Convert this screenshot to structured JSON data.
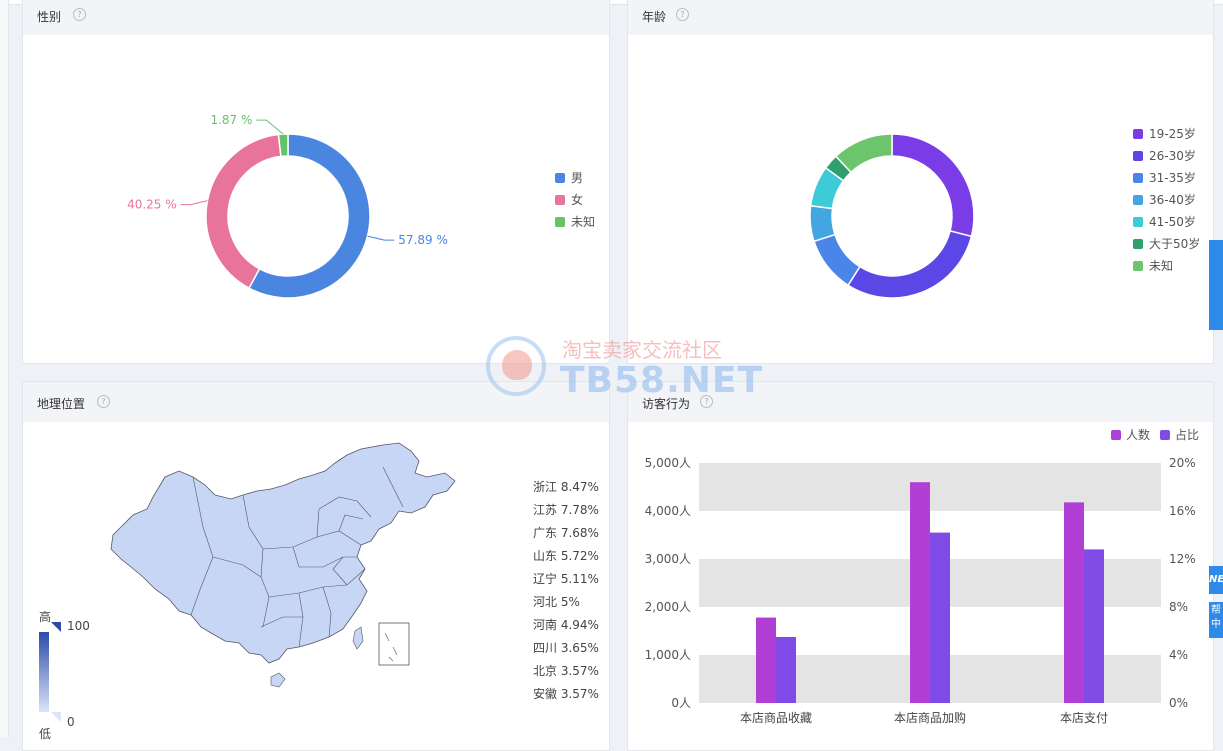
{
  "gender": {
    "title": "性别",
    "legend": [
      {
        "label": "男",
        "color": "#4a86e0"
      },
      {
        "label": "女",
        "color": "#e8749c"
      },
      {
        "label": "未知",
        "color": "#66c266"
      }
    ],
    "callouts": [
      "57.89 %",
      "40.25 %",
      "1.87 %"
    ]
  },
  "age": {
    "title": "年龄",
    "legend": [
      {
        "label": "19-25岁",
        "color": "#7a3ce6"
      },
      {
        "label": "26-30岁",
        "color": "#5b47e6"
      },
      {
        "label": "31-35岁",
        "color": "#4a86e8"
      },
      {
        "label": "36-40岁",
        "color": "#43a6e0"
      },
      {
        "label": "41-50岁",
        "color": "#3ecbd8"
      },
      {
        "label": "大于50岁",
        "color": "#2f9f6e"
      },
      {
        "label": "未知",
        "color": "#6cc56a"
      }
    ]
  },
  "geo": {
    "title": "地理位置",
    "scale_high_label": "高",
    "scale_low_label": "低",
    "scale_max": "100",
    "scale_min": "0",
    "map_color": "#c8d6f5",
    "provinces": [
      {
        "name": "浙江",
        "value": "8.47%"
      },
      {
        "name": "江苏",
        "value": "7.78%"
      },
      {
        "name": "广东",
        "value": "7.68%"
      },
      {
        "name": "山东",
        "value": "5.72%"
      },
      {
        "name": "辽宁",
        "value": "5.11%"
      },
      {
        "name": "河北",
        "value": "5%"
      },
      {
        "name": "河南",
        "value": "4.94%"
      },
      {
        "name": "四川",
        "value": "3.65%"
      },
      {
        "name": "北京",
        "value": "3.57%"
      },
      {
        "name": "安徽",
        "value": "3.57%"
      }
    ]
  },
  "visitor": {
    "title": "访客行为",
    "legend": [
      {
        "label": "人数",
        "color": "#b13fd6"
      },
      {
        "label": "占比",
        "color": "#7f4ae6"
      }
    ]
  },
  "chart_data": [
    {
      "type": "pie",
      "labels": [
        "男",
        "女",
        "未知"
      ],
      "values": [
        57.89,
        40.25,
        1.87
      ],
      "colors": [
        "#4a86e0",
        "#e8749c",
        "#66c266"
      ],
      "legend": "right"
    },
    {
      "type": "pie",
      "labels": [
        "19-25岁",
        "26-30岁",
        "31-35岁",
        "36-40岁",
        "41-50岁",
        "大于50岁",
        "未知"
      ],
      "values": [
        29,
        30,
        11,
        7,
        8,
        3,
        12
      ],
      "colors": [
        "#7a3ce6",
        "#5b47e6",
        "#4a86e8",
        "#43a6e0",
        "#3ecbd8",
        "#2f9f6e",
        "#6cc56a"
      ],
      "legend": "right"
    },
    {
      "type": "bar",
      "categories": [
        "本店商品收藏",
        "本店商品加购",
        "本店支付"
      ],
      "series": [
        {
          "name": "人数",
          "values": [
            1780,
            4600,
            4180
          ],
          "axis": "left",
          "color": "#b13fd6"
        },
        {
          "name": "占比",
          "values": [
            5.5,
            14.2,
            12.8
          ],
          "axis": "right",
          "color": "#7f4ae6"
        }
      ],
      "y_left": {
        "min": 0,
        "max": 5000,
        "ticks": [
          "0人",
          "1,000人",
          "2,000人",
          "3,000人",
          "4,000人",
          "5,000人"
        ]
      },
      "y_right": {
        "min": 0,
        "max": 20,
        "ticks": [
          "0%",
          "4%",
          "8%",
          "12%",
          "16%",
          "20%"
        ]
      },
      "legend": "top-right",
      "grid": true
    }
  ],
  "watermark": {
    "cn": "淘宝卖家交流社区",
    "en": "TB58.NET"
  },
  "side_tabs": [
    "NE",
    "帮",
    "中"
  ]
}
